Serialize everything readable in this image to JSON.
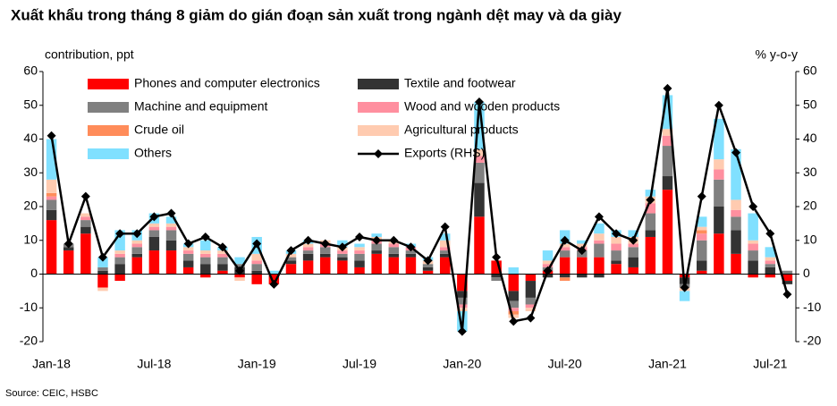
{
  "chart_data": {
    "type": "bar",
    "stacked": true,
    "title": "Xuất khẩu trong tháng 8 giảm do gián đoạn sản xuất trong ngành dệt may và da giày",
    "y_label": "contribution,  ppt",
    "y2_label": "% y-o-y",
    "source": "Source:  CEIC, HSBC",
    "categories": [
      "Jan-18",
      null,
      null,
      null,
      null,
      null,
      "Jul-18",
      null,
      null,
      null,
      null,
      null,
      "Jan-19",
      null,
      null,
      null,
      null,
      null,
      "Jul-19",
      null,
      null,
      null,
      null,
      null,
      "Jan-20",
      null,
      null,
      null,
      null,
      null,
      "Jul-20",
      null,
      null,
      null,
      null,
      null,
      "Jan-21",
      null,
      null,
      null,
      null,
      null,
      "Jul-21",
      null
    ],
    "ylim": [
      -20,
      60
    ],
    "yticks": [
      -20,
      -10,
      0,
      10,
      20,
      30,
      40,
      50,
      60
    ],
    "y2lim": [
      -20,
      60
    ],
    "y2ticks": [
      -20,
      -10,
      0,
      10,
      20,
      30,
      40,
      50,
      60
    ],
    "series": [
      {
        "name": "Phones and computer electronics",
        "color": "#ff0000",
        "values": [
          16,
          7,
          12,
          -4,
          -2,
          5,
          7,
          7,
          2,
          -1,
          1,
          -1,
          -3,
          -3,
          3,
          4,
          5,
          4,
          2,
          6,
          5,
          5,
          1,
          5,
          -5,
          17,
          4,
          -5,
          -2,
          1,
          5,
          5,
          5,
          3,
          2,
          11,
          25,
          -1,
          1,
          12,
          6,
          -1,
          -1,
          -2
        ]
      },
      {
        "name": "Textile and footwear",
        "color": "#333333",
        "values": [
          3,
          1,
          2,
          1,
          3,
          1,
          4,
          3,
          2,
          3,
          2,
          2,
          1,
          0,
          1,
          2,
          1,
          1,
          2,
          1,
          1,
          1,
          1,
          1,
          -2,
          10,
          -1,
          -3,
          -5,
          -1,
          -1,
          -1,
          -1,
          1,
          3,
          2,
          4,
          -2,
          3,
          8,
          7,
          4,
          2,
          -1
        ]
      },
      {
        "name": "Machine and equipment",
        "color": "#808080",
        "values": [
          3,
          1,
          2,
          1,
          2,
          2,
          2,
          3,
          2,
          2,
          2,
          1,
          2,
          0,
          1,
          1,
          2,
          1,
          2,
          2,
          2,
          1,
          1,
          1,
          -2,
          6,
          -1,
          -2,
          -2,
          1,
          2,
          2,
          4,
          3,
          3,
          5,
          9,
          -1,
          6,
          8,
          4,
          3,
          1,
          1
        ]
      },
      {
        "name": "Wood and wooden products",
        "color": "#ff8f9f",
        "values": [
          1,
          0,
          1,
          0,
          1,
          1,
          1,
          1,
          1,
          1,
          1,
          0,
          1,
          0,
          0,
          1,
          1,
          1,
          1,
          1,
          1,
          1,
          0,
          1,
          -1,
          2,
          0,
          -1,
          -1,
          1,
          1,
          1,
          1,
          2,
          1,
          3,
          3,
          0,
          2,
          3,
          2,
          2,
          1,
          0
        ]
      },
      {
        "name": "Crude oil",
        "color": "#ff8c5a",
        "values": [
          1,
          0,
          0,
          0,
          0,
          0,
          0,
          0,
          0,
          0,
          0,
          0,
          0,
          0,
          0,
          0,
          0,
          0,
          0,
          0,
          0,
          0,
          0,
          0,
          0,
          0,
          0,
          -1,
          0,
          0,
          -1,
          0,
          0,
          0,
          0,
          0,
          0,
          0,
          1,
          0,
          0,
          0,
          0,
          0
        ]
      },
      {
        "name": "Agricultural products",
        "color": "#ffcbb0",
        "values": [
          4,
          0,
          1,
          -1,
          1,
          1,
          1,
          1,
          1,
          1,
          1,
          -1,
          2,
          0,
          1,
          1,
          1,
          1,
          1,
          1,
          1,
          0,
          1,
          2,
          -1,
          2,
          0,
          -1,
          -1,
          1,
          1,
          1,
          2,
          2,
          2,
          2,
          2,
          -1,
          1,
          3,
          3,
          1,
          1,
          0
        ]
      },
      {
        "name": "Others",
        "color": "#80e0ff",
        "values": [
          12,
          0,
          0,
          3,
          6,
          3,
          3,
          2,
          1,
          3,
          1,
          2,
          5,
          1,
          1,
          1,
          0,
          2,
          1,
          1,
          0,
          1,
          1,
          2,
          -6,
          14,
          0,
          2,
          0,
          3,
          4,
          1,
          3,
          2,
          2,
          2,
          10,
          -3,
          3,
          12,
          15,
          8,
          3,
          0
        ]
      },
      {
        "name": "Exports (RHS)",
        "type": "line",
        "axis": "y2",
        "color": "#000000",
        "values": [
          41,
          9,
          23,
          5,
          12,
          12,
          17,
          18,
          9,
          11,
          8,
          1,
          9,
          -3,
          7,
          10,
          9,
          8,
          11,
          10,
          10,
          8,
          4,
          14,
          -17,
          51,
          5,
          -14,
          -13,
          1,
          10,
          7,
          17,
          12,
          10,
          22,
          55,
          -4,
          23,
          50,
          36,
          20,
          12,
          -6
        ]
      }
    ]
  }
}
